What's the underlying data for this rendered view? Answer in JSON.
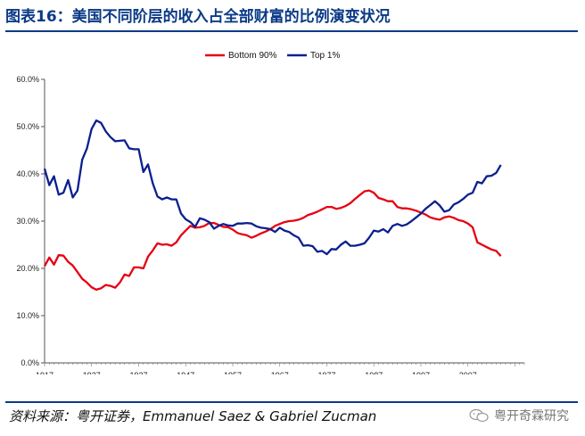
{
  "header": {
    "title": "图表16：美国不同阶层的收入占全部财富的比例演变状况"
  },
  "footer": {
    "source": "资料来源：粤开证券，Emmanuel Saez & Gabriel Zucman",
    "watermark": "粤开奇霖研究"
  },
  "colors": {
    "accent": "#0b3a86",
    "bottom90": "#e60012",
    "top1": "#0a1f8f"
  },
  "chart_data": {
    "type": "line",
    "title": "",
    "xlabel": "",
    "ylabel": "",
    "ylim": [
      0,
      60
    ],
    "xlim": [
      1917,
      2019
    ],
    "y_ticks": [
      "0.0%",
      "10.0%",
      "20.0%",
      "30.0%",
      "40.0%",
      "50.0%",
      "60.0%"
    ],
    "x_ticks": [
      "1917",
      "1927",
      "1937",
      "1947",
      "1957",
      "1967",
      "1977",
      "1987",
      "1997",
      "2007"
    ],
    "legend_position": "top-center",
    "grid": false,
    "series": [
      {
        "name": "Bottom 90%",
        "color": "#e60012",
        "points": [
          [
            1917,
            20.5
          ],
          [
            1918,
            22.3
          ],
          [
            1919,
            20.8
          ],
          [
            1920,
            22.8
          ],
          [
            1921,
            22.7
          ],
          [
            1922,
            21.4
          ],
          [
            1923,
            20.6
          ],
          [
            1924,
            19.2
          ],
          [
            1925,
            17.8
          ],
          [
            1926,
            17.0
          ],
          [
            1927,
            16.0
          ],
          [
            1928,
            15.5
          ],
          [
            1929,
            15.8
          ],
          [
            1930,
            16.5
          ],
          [
            1931,
            16.3
          ],
          [
            1932,
            15.9
          ],
          [
            1933,
            17.0
          ],
          [
            1934,
            18.7
          ],
          [
            1935,
            18.4
          ],
          [
            1936,
            20.2
          ],
          [
            1937,
            20.2
          ],
          [
            1938,
            20.0
          ],
          [
            1939,
            22.5
          ],
          [
            1940,
            23.8
          ],
          [
            1941,
            25.3
          ],
          [
            1942,
            25.0
          ],
          [
            1943,
            25.1
          ],
          [
            1944,
            24.8
          ],
          [
            1945,
            25.5
          ],
          [
            1946,
            27.0
          ],
          [
            1947,
            28.0
          ],
          [
            1948,
            29.0
          ],
          [
            1949,
            28.6
          ],
          [
            1950,
            28.7
          ],
          [
            1951,
            29.0
          ],
          [
            1952,
            29.6
          ],
          [
            1953,
            29.6
          ],
          [
            1954,
            29.2
          ],
          [
            1955,
            28.8
          ],
          [
            1956,
            28.7
          ],
          [
            1957,
            28.2
          ],
          [
            1958,
            27.5
          ],
          [
            1959,
            27.2
          ],
          [
            1960,
            27.0
          ],
          [
            1961,
            26.5
          ],
          [
            1962,
            26.9
          ],
          [
            1963,
            27.4
          ],
          [
            1964,
            27.8
          ],
          [
            1965,
            28.3
          ],
          [
            1966,
            29.0
          ],
          [
            1967,
            29.4
          ],
          [
            1968,
            29.8
          ],
          [
            1969,
            30.0
          ],
          [
            1970,
            30.1
          ],
          [
            1971,
            30.3
          ],
          [
            1972,
            30.7
          ],
          [
            1973,
            31.3
          ],
          [
            1974,
            31.6
          ],
          [
            1975,
            32.0
          ],
          [
            1976,
            32.5
          ],
          [
            1977,
            33.0
          ],
          [
            1978,
            33.0
          ],
          [
            1979,
            32.6
          ],
          [
            1980,
            32.8
          ],
          [
            1981,
            33.2
          ],
          [
            1982,
            33.8
          ],
          [
            1983,
            34.7
          ],
          [
            1984,
            35.5
          ],
          [
            1985,
            36.3
          ],
          [
            1986,
            36.5
          ],
          [
            1987,
            36.0
          ],
          [
            1988,
            34.9
          ],
          [
            1989,
            34.6
          ],
          [
            1990,
            34.2
          ],
          [
            1991,
            34.2
          ],
          [
            1992,
            33.0
          ],
          [
            1993,
            32.7
          ],
          [
            1994,
            32.7
          ],
          [
            1995,
            32.5
          ],
          [
            1996,
            32.2
          ],
          [
            1997,
            31.8
          ],
          [
            1998,
            31.4
          ],
          [
            1999,
            30.8
          ],
          [
            2000,
            30.5
          ],
          [
            2001,
            30.3
          ],
          [
            2002,
            30.8
          ],
          [
            2003,
            31.0
          ],
          [
            2004,
            30.7
          ],
          [
            2005,
            30.2
          ],
          [
            2006,
            30.0
          ],
          [
            2007,
            29.5
          ],
          [
            2008,
            28.7
          ],
          [
            2009,
            25.5
          ],
          [
            2010,
            25.0
          ],
          [
            2011,
            24.5
          ],
          [
            2012,
            24.0
          ],
          [
            2013,
            23.7
          ],
          [
            2014,
            22.6
          ]
        ]
      },
      {
        "name": "Top 1%",
        "color": "#0a1f8f",
        "points": [
          [
            1917,
            41.1
          ],
          [
            1918,
            37.6
          ],
          [
            1919,
            39.5
          ],
          [
            1920,
            35.6
          ],
          [
            1921,
            36.0
          ],
          [
            1922,
            38.7
          ],
          [
            1923,
            35.0
          ],
          [
            1924,
            36.5
          ],
          [
            1925,
            43.0
          ],
          [
            1926,
            45.4
          ],
          [
            1927,
            49.5
          ],
          [
            1928,
            51.3
          ],
          [
            1929,
            50.8
          ],
          [
            1930,
            49.0
          ],
          [
            1931,
            47.8
          ],
          [
            1932,
            46.9
          ],
          [
            1933,
            47.0
          ],
          [
            1934,
            47.1
          ],
          [
            1935,
            45.4
          ],
          [
            1936,
            45.2
          ],
          [
            1937,
            45.2
          ],
          [
            1938,
            40.4
          ],
          [
            1939,
            42.0
          ],
          [
            1940,
            38.0
          ],
          [
            1941,
            35.2
          ],
          [
            1942,
            34.6
          ],
          [
            1943,
            35.0
          ],
          [
            1944,
            34.6
          ],
          [
            1945,
            34.6
          ],
          [
            1946,
            31.6
          ],
          [
            1947,
            30.4
          ],
          [
            1948,
            29.8
          ],
          [
            1949,
            28.8
          ],
          [
            1950,
            30.6
          ],
          [
            1951,
            30.3
          ],
          [
            1952,
            29.8
          ],
          [
            1953,
            28.4
          ],
          [
            1954,
            29.0
          ],
          [
            1955,
            29.4
          ],
          [
            1956,
            29.1
          ],
          [
            1957,
            29.0
          ],
          [
            1958,
            29.5
          ],
          [
            1959,
            29.5
          ],
          [
            1960,
            29.6
          ],
          [
            1961,
            29.5
          ],
          [
            1962,
            28.9
          ],
          [
            1963,
            28.6
          ],
          [
            1964,
            28.5
          ],
          [
            1965,
            28.3
          ],
          [
            1966,
            27.7
          ],
          [
            1967,
            28.6
          ],
          [
            1968,
            28.0
          ],
          [
            1969,
            27.7
          ],
          [
            1970,
            27.0
          ],
          [
            1971,
            26.5
          ],
          [
            1972,
            24.8
          ],
          [
            1973,
            24.9
          ],
          [
            1974,
            24.7
          ],
          [
            1975,
            23.5
          ],
          [
            1976,
            23.7
          ],
          [
            1977,
            23.0
          ],
          [
            1978,
            24.1
          ],
          [
            1979,
            24.0
          ],
          [
            1980,
            25.0
          ],
          [
            1981,
            25.7
          ],
          [
            1982,
            24.8
          ],
          [
            1983,
            24.8
          ],
          [
            1984,
            25.0
          ],
          [
            1985,
            25.3
          ],
          [
            1986,
            26.5
          ],
          [
            1987,
            28.0
          ],
          [
            1988,
            27.8
          ],
          [
            1989,
            28.3
          ],
          [
            1990,
            27.6
          ],
          [
            1991,
            29.0
          ],
          [
            1992,
            29.4
          ],
          [
            1993,
            29.0
          ],
          [
            1994,
            29.3
          ],
          [
            1995,
            30.0
          ],
          [
            1996,
            30.8
          ],
          [
            1997,
            31.6
          ],
          [
            1998,
            32.6
          ],
          [
            1999,
            33.4
          ],
          [
            2000,
            34.2
          ],
          [
            2001,
            33.3
          ],
          [
            2002,
            32.0
          ],
          [
            2003,
            32.3
          ],
          [
            2004,
            33.5
          ],
          [
            2005,
            34.0
          ],
          [
            2006,
            34.7
          ],
          [
            2007,
            35.6
          ],
          [
            2008,
            36.0
          ],
          [
            2009,
            38.3
          ],
          [
            2010,
            38.0
          ],
          [
            2011,
            39.5
          ],
          [
            2012,
            39.6
          ],
          [
            2013,
            40.2
          ],
          [
            2014,
            41.9
          ]
        ]
      }
    ]
  }
}
